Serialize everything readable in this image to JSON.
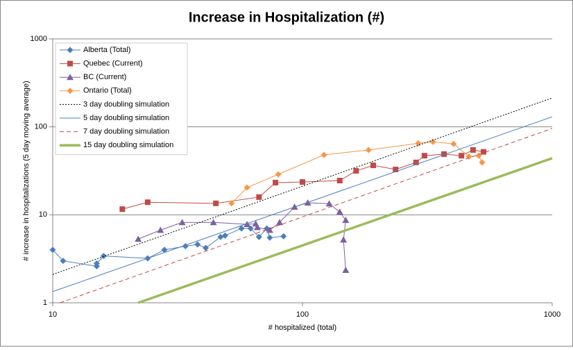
{
  "chart_data": {
    "type": "line",
    "title": "Increase in Hospitalization (#)",
    "xlabel": "# hospitalized (total)",
    "ylabel": "# increase in hospitalizations  (5 day moving average)",
    "xscale": "log",
    "yscale": "log",
    "xlim": [
      10,
      1000
    ],
    "ylim": [
      1,
      1000
    ],
    "xticks": [
      10,
      100,
      1000
    ],
    "yticks": [
      1,
      10,
      100,
      1000
    ],
    "grid": true,
    "legend": "upper left",
    "series": [
      {
        "name": "Alberta (Total)",
        "color": "#4a7ebb",
        "marker": "diamond",
        "x": [
          10,
          11,
          15,
          15,
          16,
          24,
          28,
          34,
          38,
          41,
          47,
          49,
          57,
          62,
          67,
          72,
          74,
          84
        ],
        "values": [
          4,
          3,
          2.6,
          2.8,
          3.4,
          3.2,
          4,
          4.4,
          4.6,
          4.2,
          5.6,
          5.8,
          7,
          7,
          5.6,
          7,
          5.5,
          5.7
        ]
      },
      {
        "name": "Quebec (Current)",
        "color": "#be4b48",
        "marker": "square",
        "x": [
          19,
          24,
          45,
          67,
          78,
          100,
          141,
          164,
          192,
          236,
          285,
          308,
          369,
          433,
          482,
          531
        ],
        "values": [
          11.6,
          13.9,
          13.5,
          15.9,
          23.2,
          23.6,
          24.5,
          31.6,
          36.5,
          32.8,
          39.4,
          47,
          49,
          47,
          54.6,
          52
        ]
      },
      {
        "name": "BC (Current)",
        "color": "#7d60a0",
        "marker": "triangle",
        "x": [
          22,
          27,
          33,
          44,
          60,
          65,
          66,
          74,
          81,
          93,
          105,
          128,
          141,
          149,
          146,
          149
        ],
        "values": [
          5.3,
          6.7,
          8.2,
          8.2,
          7.8,
          7.9,
          7.2,
          6.7,
          8.2,
          12.3,
          13.7,
          13.4,
          10.8,
          8.7,
          5.2,
          2.35
        ]
      },
      {
        "name": "Ontario (Total)",
        "color": "#f79646",
        "marker": "diamond",
        "x": [
          52,
          60,
          80,
          122,
          184,
          291,
          333,
          403,
          464,
          508,
          524
        ],
        "values": [
          13.5,
          20.4,
          28.8,
          48,
          54.6,
          65,
          67.6,
          64,
          46,
          47,
          39.4
        ]
      },
      {
        "name": "3 day doubling simulation",
        "color": "#000000",
        "dash": "2 2",
        "width": 1,
        "x": [
          10,
          1000
        ],
        "values": [
          2.1,
          213
        ]
      },
      {
        "name": "5 day doubling simulation",
        "color": "#4a7ebb",
        "width": 1,
        "x": [
          10,
          1000
        ],
        "values": [
          1.34,
          130
        ]
      },
      {
        "name": "7 day doubling simulation",
        "color": "#be4b48",
        "dash": "6 4",
        "width": 1,
        "x": [
          10.7,
          1000
        ],
        "values": [
          1,
          96
        ]
      },
      {
        "name": "15 day doubling simulation",
        "color": "#9bbb59",
        "width": 3.5,
        "x": [
          22,
          1000
        ],
        "values": [
          1,
          44
        ]
      }
    ]
  }
}
